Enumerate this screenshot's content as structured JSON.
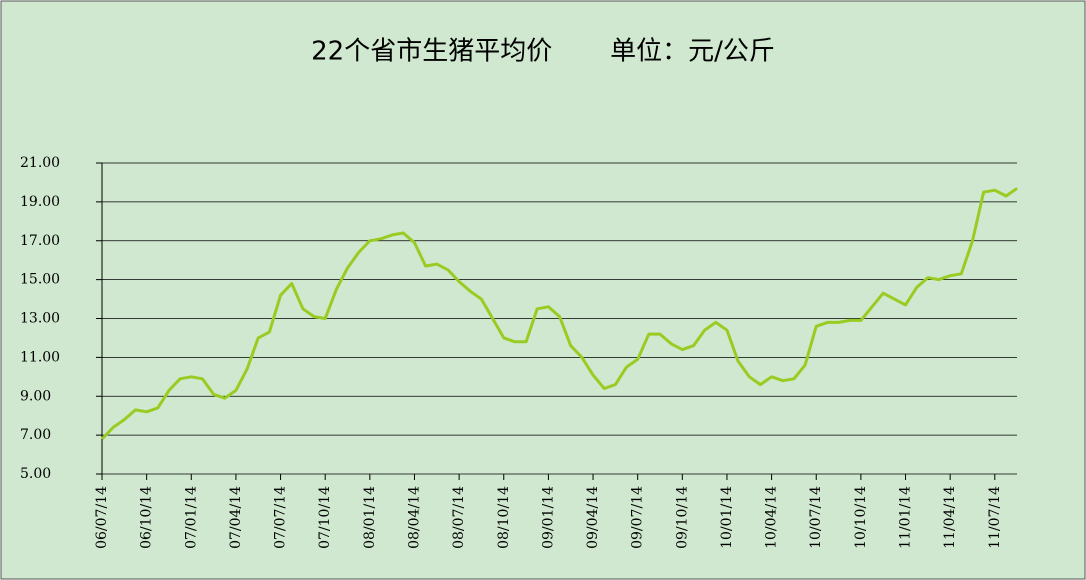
{
  "chart_data": {
    "type": "line",
    "title": "22个省市生猪平均价       单位：元/公斤",
    "categories": [
      "06/07/14",
      null,
      null,
      null,
      "06/10/14",
      null,
      null,
      null,
      "07/01/14",
      null,
      null,
      null,
      "07/04/14",
      null,
      null,
      null,
      "07/07/14",
      null,
      null,
      null,
      "07/10/14",
      null,
      null,
      null,
      "08/01/14",
      null,
      null,
      null,
      "08/04/14",
      null,
      null,
      null,
      "08/07/14",
      null,
      null,
      null,
      "08/10/14",
      null,
      null,
      null,
      "09/01/14",
      null,
      null,
      null,
      "09/04/14",
      null,
      null,
      null,
      "09/07/14",
      null,
      null,
      null,
      "09/10/14",
      null,
      null,
      null,
      "10/01/14",
      null,
      null,
      null,
      "10/04/14",
      null,
      null,
      null,
      "10/07/14",
      null,
      null,
      null,
      "10/10/14",
      null,
      null,
      null,
      "11/01/14",
      null,
      null,
      null,
      "11/04/14",
      null,
      null,
      null,
      "11/07/14",
      null,
      null
    ],
    "series": [
      {
        "color": "#99cc22",
        "values": [
          6.8,
          7.4,
          7.8,
          8.3,
          8.2,
          8.4,
          9.3,
          9.9,
          10.0,
          9.9,
          9.1,
          8.9,
          9.3,
          10.4,
          12.0,
          12.3,
          14.2,
          14.8,
          13.5,
          13.1,
          13.0,
          14.5,
          15.6,
          16.4,
          17.0,
          17.1,
          17.3,
          17.4,
          16.9,
          15.7,
          15.8,
          15.5,
          14.9,
          14.4,
          14.0,
          13.0,
          12.0,
          11.8,
          11.8,
          13.5,
          13.6,
          13.1,
          11.6,
          11.0,
          10.1,
          9.4,
          9.6,
          10.5,
          10.9,
          12.2,
          12.2,
          11.7,
          11.4,
          11.6,
          12.4,
          12.8,
          12.4,
          10.8,
          10.0,
          9.6,
          10.0,
          9.8,
          9.9,
          10.6,
          12.6,
          12.8,
          12.8,
          12.9,
          12.9,
          13.6,
          14.3,
          14.0,
          13.7,
          14.6,
          15.1,
          15.0,
          15.2,
          15.3,
          17.0,
          19.5,
          19.6,
          19.3,
          19.7
        ]
      }
    ],
    "ylim": [
      5,
      21
    ],
    "yticks": [
      {
        "value": 5,
        "label": "5.00"
      },
      {
        "value": 7,
        "label": "7.00"
      },
      {
        "value": 9,
        "label": "9.00"
      },
      {
        "value": 11,
        "label": "11.00"
      },
      {
        "value": 13,
        "label": "13.00"
      },
      {
        "value": 15,
        "label": "15.00"
      },
      {
        "value": 17,
        "label": "17.00"
      },
      {
        "value": 19,
        "label": "19.00"
      },
      {
        "value": 21,
        "label": "21.00"
      }
    ],
    "grid": true
  }
}
